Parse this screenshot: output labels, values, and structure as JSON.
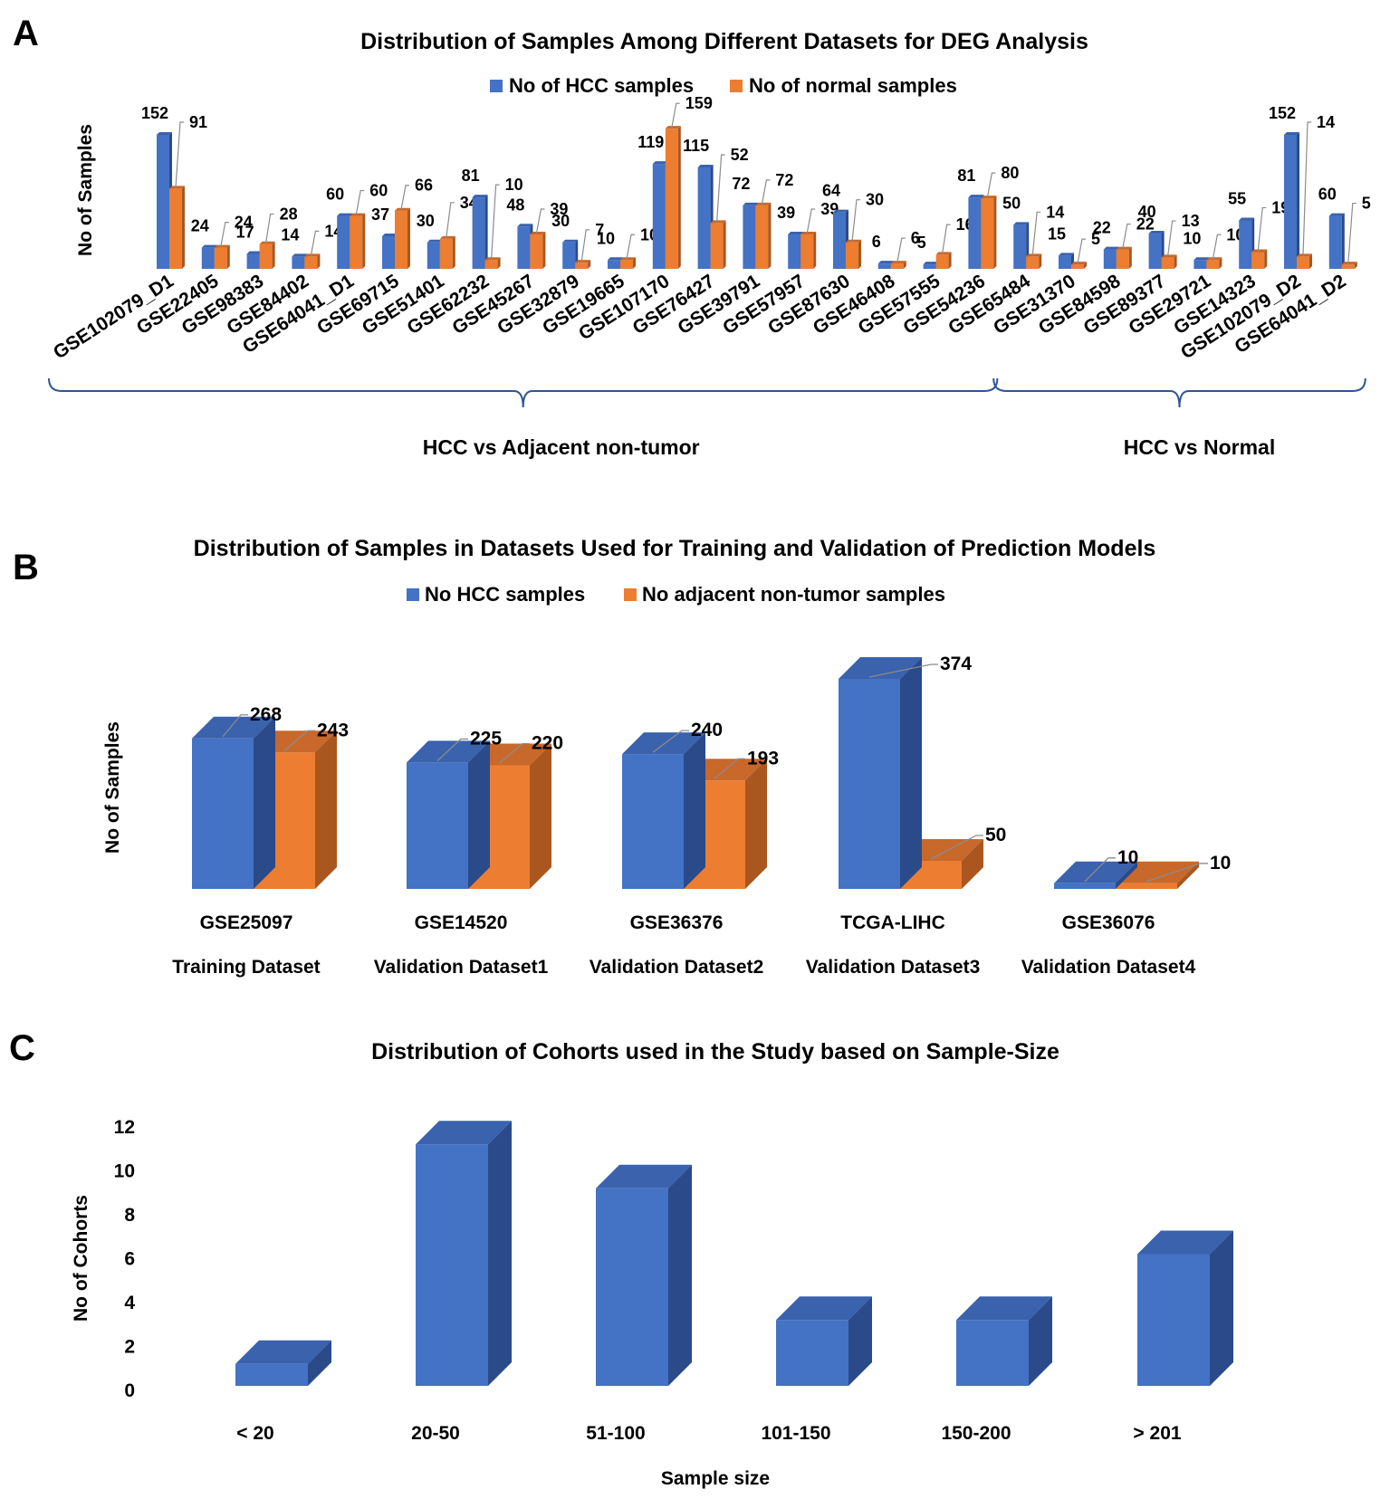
{
  "colors": {
    "blue": "#4472c4",
    "blue_top": "#3a62ad",
    "blue_side": "#2b4a8a",
    "orange": "#ed7d31",
    "orange_top": "#c8682a",
    "orange_side": "#a9561f",
    "bracket": "#2f5597",
    "leader": "#8c8c8c"
  },
  "chart_data": [
    {
      "panel": "A",
      "type": "bar",
      "title": "Distribution of Samples Among Different Datasets for DEG Analysis",
      "ylabel": "No of Samples",
      "legend_position": "top-center",
      "categories": [
        "GSE102079_D1",
        "GSE22405",
        "GSE98383",
        "GSE84402",
        "GSE64041_D1",
        "GSE69715",
        "GSE51401",
        "GSE62232",
        "GSE45267",
        "GSE32879",
        "GSE19665",
        "GSE107170",
        "GSE76427",
        "GSE39791",
        "GSE57957",
        "GSE87630",
        "GSE46408",
        "GSE57555",
        "GSE54236",
        "GSE65484",
        "GSE31370",
        "GSE84598",
        "GSE89377",
        "GSE29721",
        "GSE14323",
        "GSE102079_D2",
        "GSE64041_D2"
      ],
      "series": [
        {
          "name": "No of HCC samples",
          "values": [
            152,
            24,
            17,
            14,
            60,
            37,
            30,
            81,
            48,
            30,
            10,
            119,
            115,
            72,
            39,
            64,
            6,
            5,
            81,
            50,
            15,
            22,
            40,
            10,
            55,
            152,
            60
          ]
        },
        {
          "name": "No of normal samples",
          "values": [
            91,
            24,
            28,
            14,
            60,
            66,
            34,
            10,
            39,
            7,
            10,
            159,
            52,
            72,
            39,
            30,
            6,
            16,
            80,
            14,
            5,
            22,
            13,
            10,
            19,
            14,
            5
          ]
        }
      ],
      "groups": [
        {
          "label": "HCC vs Adjacent non-tumor",
          "from": "GSE102079_D1",
          "to": "GSE54236"
        },
        {
          "label": "HCC vs Normal",
          "from": "GSE65484",
          "to": "GSE64041_D2"
        }
      ],
      "ylim": [
        0,
        160
      ]
    },
    {
      "panel": "B",
      "type": "bar",
      "title": "Distribution of Samples in Datasets Used for Training and Validation of Prediction Models",
      "ylabel": "No of Samples",
      "legend_position": "top-center",
      "categories": [
        "GSE25097",
        "GSE14520",
        "GSE36376",
        "TCGA-LIHC",
        "GSE36076"
      ],
      "subcategories": [
        "Training Dataset",
        "Validation Dataset1",
        "Validation Dataset2",
        "Validation Dataset3",
        "Validation Dataset4"
      ],
      "series": [
        {
          "name": "No HCC samples",
          "values": [
            268,
            225,
            240,
            374,
            10
          ]
        },
        {
          "name": "No adjacent non-tumor samples",
          "values": [
            243,
            220,
            193,
            50,
            10
          ]
        }
      ],
      "ylim": [
        0,
        374
      ]
    },
    {
      "panel": "C",
      "type": "bar",
      "title": "Distribution  of Cohorts used in the Study  based on Sample-Size",
      "xlabel": "Sample size",
      "ylabel": "No of Cohorts",
      "categories": [
        "< 20",
        "20-50",
        "51-100",
        "101-150",
        "150-200",
        "> 201"
      ],
      "values": [
        1,
        11,
        9,
        3,
        3,
        6
      ],
      "ylim": [
        0,
        12
      ],
      "yticks": [
        "0",
        "2",
        "4",
        "6",
        "8",
        "10",
        "12"
      ]
    }
  ]
}
